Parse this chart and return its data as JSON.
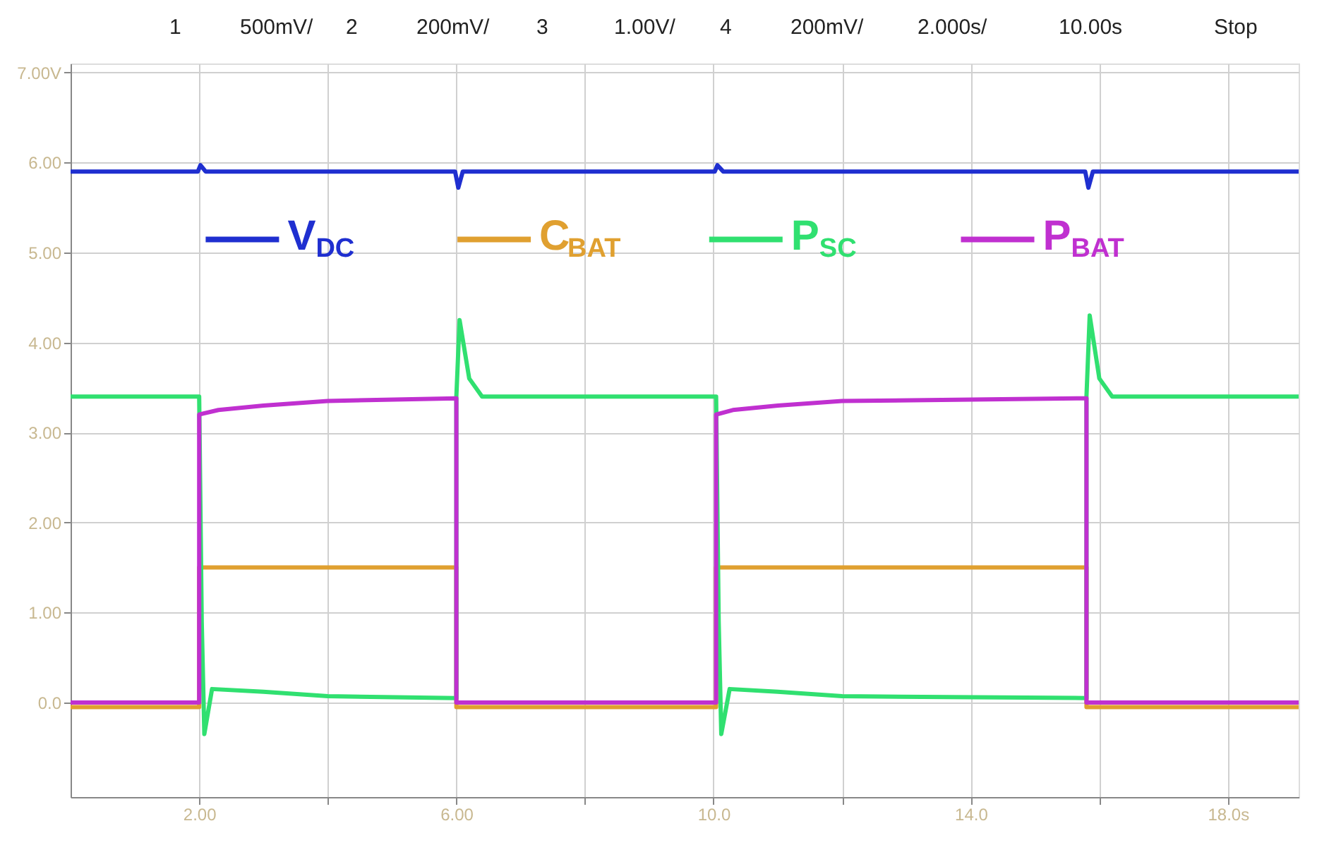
{
  "chart_data": {
    "type": "line",
    "annotations": [
      "1",
      "500mV/",
      "2",
      "200mV/",
      "3",
      "1.00V/",
      "4",
      "200mV/",
      "2.000s/",
      "10.00s",
      "Stop"
    ],
    "xlim": [
      0,
      19.1
    ],
    "ylim": [
      -1.05,
      7.1
    ],
    "xticks": [
      {
        "value": 2,
        "label": "2.00"
      },
      {
        "value": 4,
        "label": null
      },
      {
        "value": 6,
        "label": "6.00"
      },
      {
        "value": 8,
        "label": null
      },
      {
        "value": 10,
        "label": "10.0"
      },
      {
        "value": 12,
        "label": null
      },
      {
        "value": 14,
        "label": "14.0"
      },
      {
        "value": 16,
        "label": null
      },
      {
        "value": 18,
        "label": "18.0s"
      }
    ],
    "yticks": [
      {
        "value": 0,
        "label": "0.0"
      },
      {
        "value": 1,
        "label": "1.00"
      },
      {
        "value": 2,
        "label": "2.00"
      },
      {
        "value": 3,
        "label": "3.00"
      },
      {
        "value": 4,
        "label": "4.00"
      },
      {
        "value": 5,
        "label": "5.00"
      },
      {
        "value": 6,
        "label": "6.00"
      },
      {
        "value": 7,
        "label": "7.00V"
      }
    ],
    "grid": true,
    "legend": "top",
    "marker": "none",
    "line_style": "solid",
    "series": [
      {
        "name": "V$_{DC}$",
        "color": "#1f2fd0",
        "x": [
          0,
          1.98,
          2.02,
          2.1,
          5.98,
          6.03,
          6.1,
          10.02,
          10.06,
          10.15,
          15.78,
          15.83,
          15.9,
          19.1
        ],
        "values": [
          5.9,
          5.9,
          5.97,
          5.9,
          5.9,
          5.72,
          5.9,
          5.9,
          5.97,
          5.9,
          5.9,
          5.72,
          5.9,
          5.9
        ]
      },
      {
        "name": "C$_{BAT}$",
        "color": "#e0a030",
        "x": [
          0,
          2.0,
          2.0,
          6.0,
          6.0,
          10.04,
          10.04,
          15.8,
          15.8,
          19.1
        ],
        "values": [
          -0.05,
          -0.05,
          1.5,
          1.5,
          -0.05,
          -0.05,
          1.5,
          1.5,
          -0.05,
          -0.05
        ]
      },
      {
        "name": "P$_{SC}$",
        "color": "#30e070",
        "x": [
          0,
          2.0,
          2.04,
          2.08,
          2.2,
          3,
          4,
          6.0,
          6.0,
          6.05,
          6.2,
          6.4,
          10.04,
          10.08,
          10.12,
          10.25,
          11,
          12,
          15.8,
          15.8,
          15.85,
          16.0,
          16.2,
          19.1
        ],
        "values": [
          3.4,
          3.4,
          0.9,
          -0.35,
          0.15,
          0.12,
          0.07,
          0.05,
          3.4,
          4.25,
          3.6,
          3.4,
          3.4,
          0.9,
          -0.35,
          0.15,
          0.12,
          0.07,
          0.05,
          3.4,
          4.3,
          3.6,
          3.4,
          3.4
        ]
      },
      {
        "name": "P$_{BAT}$",
        "color": "#c030d0",
        "x": [
          0,
          2.0,
          2.0,
          2.3,
          3,
          4,
          6.0,
          6.0,
          10.04,
          10.04,
          10.3,
          11,
          12,
          15.8,
          15.8,
          19.1
        ],
        "values": [
          0.0,
          0.0,
          3.2,
          3.25,
          3.3,
          3.35,
          3.38,
          0.0,
          0.0,
          3.2,
          3.25,
          3.3,
          3.35,
          3.38,
          0.0,
          0.0
        ]
      }
    ]
  }
}
